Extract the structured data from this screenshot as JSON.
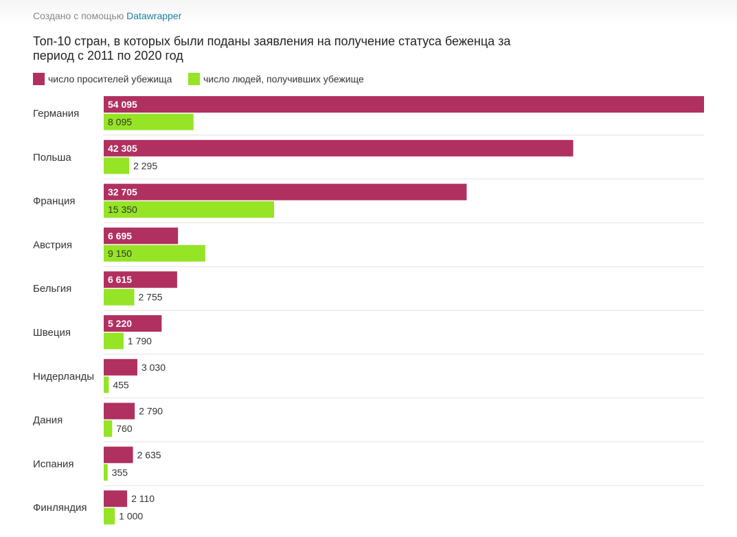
{
  "credit": {
    "prefix": "Создано с помощью",
    "link": "Datawrapper"
  },
  "chart_data": {
    "type": "bar",
    "orientation": "horizontal-grouped",
    "title": "Топ-10 стран, в которых были поданы заявления на получение статуса беженца за период с 2011 по 2020 год",
    "categories": [
      "Германия",
      "Польша",
      "Франция",
      "Австрия",
      "Бельгия",
      "Швеция",
      "Нидерланды",
      "Дания",
      "Испания",
      "Финляндия"
    ],
    "series": [
      {
        "name": "число просителей убежища",
        "color": "#b03060",
        "values": [
          54095,
          42305,
          32705,
          6695,
          6615,
          5220,
          3030,
          2790,
          2635,
          2110
        ],
        "labels": [
          "54 095",
          "42 305",
          "32 705",
          "6 695",
          "6 615",
          "5 220",
          "3 030",
          "2 790",
          "2 635",
          "2 110"
        ]
      },
      {
        "name": "число людей, получивших убежище",
        "color": "#95e425",
        "values": [
          8095,
          2295,
          15350,
          9150,
          2755,
          1790,
          455,
          760,
          355,
          1000
        ],
        "labels": [
          "8 095",
          "2 295",
          "15 350",
          "9 150",
          "2 755",
          "1 790",
          "455",
          "760",
          "355",
          "1 000"
        ]
      }
    ],
    "xlim": [
      0,
      54095
    ],
    "grid": false,
    "legend": "top-left"
  }
}
